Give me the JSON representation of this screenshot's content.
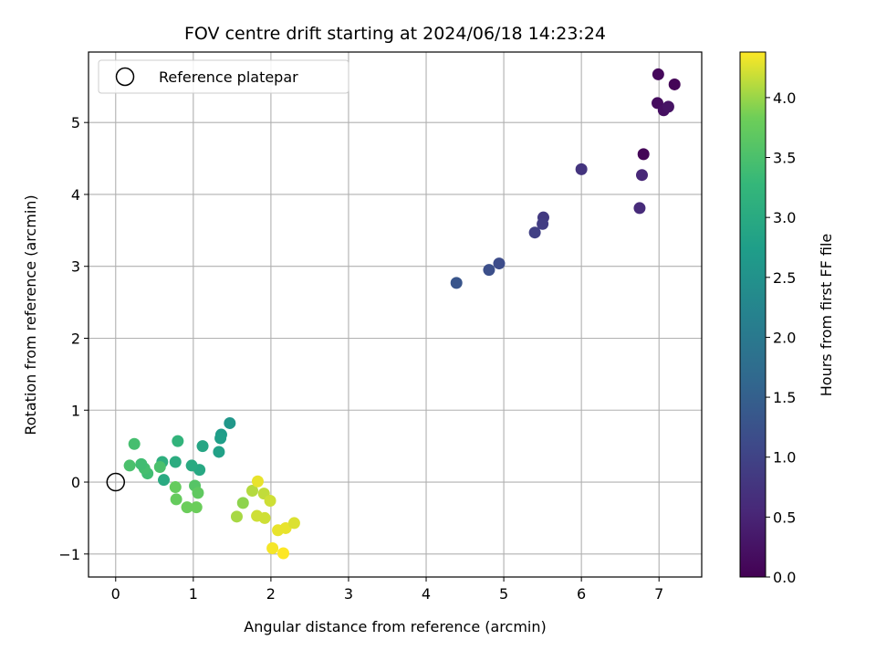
{
  "chart_data": {
    "type": "scatter",
    "title": "FOV centre drift starting at 2024/06/18 14:23:24",
    "xlabel": "Angular distance from reference (arcmin)",
    "ylabel": "Rotation from reference (arcmin)",
    "xlim": [
      -0.35,
      7.55
    ],
    "ylim": [
      -1.32,
      5.98
    ],
    "xticks": [
      0,
      1,
      2,
      3,
      4,
      5,
      6,
      7
    ],
    "yticks": [
      -1,
      0,
      1,
      2,
      3,
      4,
      5
    ],
    "xtick_labels": [
      "0",
      "1",
      "2",
      "3",
      "4",
      "5",
      "6",
      "7"
    ],
    "ytick_labels": [
      "−1",
      "0",
      "1",
      "2",
      "3",
      "4",
      "5"
    ],
    "grid": true,
    "legend": {
      "placement": "top-left",
      "entries": [
        "Reference platepar"
      ]
    },
    "reference_point": {
      "x": 0,
      "y": 0
    },
    "colorbar": {
      "label": "Hours from first FF file",
      "colormap": "viridis",
      "range": [
        0.0,
        4.38
      ],
      "ticks": [
        0.0,
        0.5,
        1.0,
        1.5,
        2.0,
        2.5,
        3.0,
        3.5,
        4.0
      ],
      "tick_labels": [
        "0.0",
        "0.5",
        "1.0",
        "1.5",
        "2.0",
        "2.5",
        "3.0",
        "3.5",
        "4.0"
      ]
    },
    "points": [
      {
        "x": 7.2,
        "y": 5.53,
        "c": 0.05
      },
      {
        "x": 6.99,
        "y": 5.67,
        "c": 0.1
      },
      {
        "x": 6.98,
        "y": 5.27,
        "c": 0.15
      },
      {
        "x": 7.06,
        "y": 5.17,
        "c": 0.2
      },
      {
        "x": 7.12,
        "y": 5.22,
        "c": 0.25
      },
      {
        "x": 6.8,
        "y": 4.56,
        "c": 0.05
      },
      {
        "x": 6.78,
        "y": 4.27,
        "c": 0.55
      },
      {
        "x": 6.75,
        "y": 3.81,
        "c": 0.6
      },
      {
        "x": 6.0,
        "y": 4.35,
        "c": 0.75
      },
      {
        "x": 5.51,
        "y": 3.68,
        "c": 0.85
      },
      {
        "x": 5.5,
        "y": 3.59,
        "c": 0.9
      },
      {
        "x": 5.4,
        "y": 3.47,
        "c": 0.95
      },
      {
        "x": 4.94,
        "y": 3.04,
        "c": 1.15
      },
      {
        "x": 4.81,
        "y": 2.95,
        "c": 1.2
      },
      {
        "x": 4.39,
        "y": 2.77,
        "c": 1.3
      },
      {
        "x": 1.47,
        "y": 0.82,
        "c": 2.6
      },
      {
        "x": 1.36,
        "y": 0.66,
        "c": 2.7
      },
      {
        "x": 1.35,
        "y": 0.61,
        "c": 2.75
      },
      {
        "x": 1.33,
        "y": 0.42,
        "c": 2.8
      },
      {
        "x": 1.12,
        "y": 0.5,
        "c": 2.9
      },
      {
        "x": 1.08,
        "y": 0.17,
        "c": 2.95
      },
      {
        "x": 0.98,
        "y": 0.23,
        "c": 3.0
      },
      {
        "x": 0.8,
        "y": 0.57,
        "c": 3.2
      },
      {
        "x": 0.77,
        "y": 0.28,
        "c": 3.05
      },
      {
        "x": 0.62,
        "y": 0.03,
        "c": 3.0
      },
      {
        "x": 0.6,
        "y": 0.28,
        "c": 3.1
      },
      {
        "x": 0.57,
        "y": 0.21,
        "c": 3.5
      },
      {
        "x": 0.41,
        "y": 0.12,
        "c": 3.4
      },
      {
        "x": 0.37,
        "y": 0.19,
        "c": 3.45
      },
      {
        "x": 0.33,
        "y": 0.25,
        "c": 3.4
      },
      {
        "x": 0.24,
        "y": 0.53,
        "c": 3.45
      },
      {
        "x": 0.18,
        "y": 0.23,
        "c": 3.5
      },
      {
        "x": 1.02,
        "y": -0.05,
        "c": 3.6
      },
      {
        "x": 1.06,
        "y": -0.15,
        "c": 3.7
      },
      {
        "x": 0.77,
        "y": -0.07,
        "c": 3.75
      },
      {
        "x": 0.78,
        "y": -0.24,
        "c": 3.75
      },
      {
        "x": 0.92,
        "y": -0.35,
        "c": 3.8
      },
      {
        "x": 1.04,
        "y": -0.35,
        "c": 3.8
      },
      {
        "x": 1.64,
        "y": -0.29,
        "c": 3.95
      },
      {
        "x": 1.56,
        "y": -0.48,
        "c": 4.05
      },
      {
        "x": 1.76,
        "y": -0.12,
        "c": 4.1
      },
      {
        "x": 1.83,
        "y": 0.01,
        "c": 4.3
      },
      {
        "x": 1.91,
        "y": -0.16,
        "c": 4.15
      },
      {
        "x": 1.99,
        "y": -0.26,
        "c": 4.2
      },
      {
        "x": 1.82,
        "y": -0.47,
        "c": 4.2
      },
      {
        "x": 1.92,
        "y": -0.5,
        "c": 4.2
      },
      {
        "x": 2.09,
        "y": -0.67,
        "c": 4.3
      },
      {
        "x": 2.19,
        "y": -0.64,
        "c": 4.3
      },
      {
        "x": 2.3,
        "y": -0.57,
        "c": 4.25
      },
      {
        "x": 2.02,
        "y": -0.92,
        "c": 4.35
      },
      {
        "x": 2.16,
        "y": -0.99,
        "c": 4.38
      }
    ]
  }
}
